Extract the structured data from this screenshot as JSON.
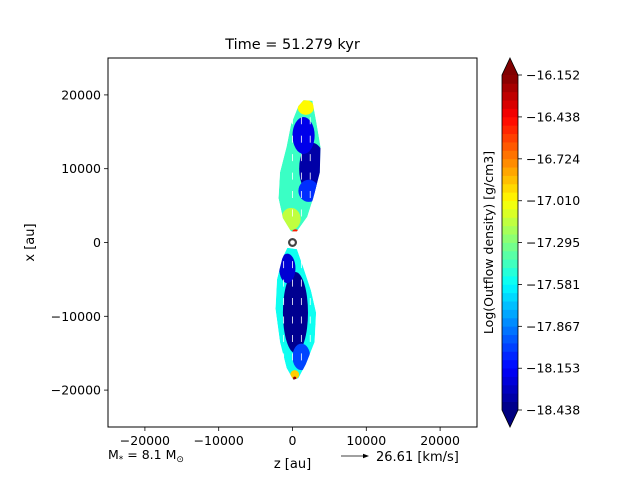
{
  "chart_data": {
    "type": "heatmap",
    "title": "Time = 51.279 kyr",
    "xlabel": "z [au]",
    "ylabel": "x [au]",
    "xlim": [
      -25000,
      25000
    ],
    "ylim": [
      -25000,
      25000
    ],
    "xticks": [
      -20000,
      -10000,
      0,
      10000,
      20000
    ],
    "yticks": [
      20000,
      10000,
      0,
      -10000,
      -20000
    ],
    "xtick_labels": [
      "−20000",
      "−10000",
      "0",
      "10000",
      "20000"
    ],
    "ytick_labels": [
      "20000",
      "10000",
      "0",
      "−10000",
      "−20000"
    ],
    "grid": false,
    "colorbar": {
      "label": "Log(Outflow density) [g/cm3]",
      "min": -18.438,
      "max": -16.152,
      "ticks": [
        -16.152,
        -16.438,
        -16.724,
        -17.01,
        -17.295,
        -17.581,
        -17.867,
        -18.153,
        -18.438
      ],
      "tick_labels": [
        "−16.152",
        "−16.438",
        "−16.724",
        "−17.010",
        "−17.295",
        "−17.581",
        "−17.867",
        "−18.153",
        "−18.438"
      ],
      "colormap": "jet",
      "extend": "both"
    },
    "star_marker": {
      "z": 0,
      "x": 0
    },
    "lobes": [
      {
        "name": "",
        "outline": [
          [
            1500,
            19300
          ],
          [
            2700,
            19200
          ],
          [
            3200,
            16500
          ],
          [
            3800,
            13000
          ],
          [
            3700,
            9500
          ],
          [
            2800,
            6000
          ],
          [
            2000,
            3500
          ],
          [
            600,
            1500
          ],
          [
            -200,
            1500
          ],
          [
            -1300,
            3300
          ],
          [
            -1900,
            6000
          ],
          [
            -1700,
            9500
          ],
          [
            -800,
            13000
          ],
          [
            -200,
            16000
          ],
          [
            800,
            18500
          ]
        ],
        "base_value": -17.45,
        "blobs": [
          {
            "z": 2700,
            "x": 10000,
            "rz": 1800,
            "rx": 3500,
            "value": -18.35
          },
          {
            "z": 1500,
            "x": 14500,
            "rz": 1500,
            "rx": 2500,
            "value": -18.2
          },
          {
            "z": 2200,
            "x": 7000,
            "rz": 1400,
            "rx": 1500,
            "value": -18.05
          },
          {
            "z": 1800,
            "x": 18300,
            "rz": 1100,
            "rx": 1000,
            "value": -17.0
          },
          {
            "z": -200,
            "x": 3200,
            "rz": 1300,
            "rx": 1500,
            "value": -17.15
          },
          {
            "z": 400,
            "x": 1300,
            "rz": 500,
            "rx": 500,
            "value": -16.5
          }
        ]
      },
      {
        "name": "",
        "outline": [
          [
            -700,
            -700
          ],
          [
            600,
            -900
          ],
          [
            1500,
            -3500
          ],
          [
            2500,
            -6500
          ],
          [
            3200,
            -9500
          ],
          [
            3000,
            -13500
          ],
          [
            1800,
            -16500
          ],
          [
            800,
            -18400
          ],
          [
            100,
            -18600
          ],
          [
            -800,
            -17000
          ],
          [
            -1700,
            -13500
          ],
          [
            -2300,
            -9000
          ],
          [
            -2100,
            -5000
          ],
          [
            -1400,
            -2200
          ]
        ],
        "base_value": -17.55,
        "blobs": [
          {
            "z": 400,
            "x": -9500,
            "rz": 1700,
            "rx": 5500,
            "value": -18.4
          },
          {
            "z": -700,
            "x": -3500,
            "rz": 1100,
            "rx": 2000,
            "value": -18.25
          },
          {
            "z": 1200,
            "x": -15500,
            "rz": 1200,
            "rx": 1800,
            "value": -18.0
          },
          {
            "z": 300,
            "x": -17900,
            "rz": 600,
            "rx": 600,
            "value": -16.9
          },
          {
            "z": 300,
            "x": -18400,
            "rz": 220,
            "rx": 220,
            "value": -16.2
          }
        ]
      }
    ],
    "velocity_scale": {
      "value": 26.61,
      "unit": "km/s",
      "label": "26.61 [km/s]"
    },
    "annotation_mass": {
      "prefix": "M",
      "sub": "*",
      "mid": " = 8.1 M",
      "sun_sub": "⊙"
    }
  }
}
